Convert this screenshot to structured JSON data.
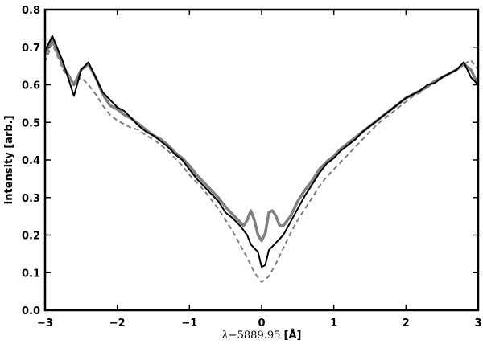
{
  "chart_data": {
    "type": "line",
    "xlabel_parts": [
      "λ",
      "−5889.95 ",
      "[Å]"
    ],
    "ylabel": "Intensity [arb.]",
    "xlim": [
      -3,
      3
    ],
    "ylim": [
      0,
      0.8
    ],
    "x_ticks": [
      -3,
      -2,
      -1,
      0,
      1,
      2,
      3
    ],
    "x_tick_labels": [
      "−3",
      "−2",
      "−1",
      "0",
      "1",
      "2",
      "3"
    ],
    "y_ticks": [
      0.0,
      0.1,
      0.2,
      0.3,
      0.4,
      0.5,
      0.6,
      0.7,
      0.8
    ],
    "y_tick_labels": [
      "0.0",
      "0.1",
      "0.2",
      "0.3",
      "0.4",
      "0.5",
      "0.6",
      "0.7",
      "0.8"
    ],
    "grid": false,
    "legend": "none",
    "series": [
      {
        "style": "dashed-gray",
        "color": "#7f7f7f",
        "x": [
          -3.0,
          -2.9,
          -2.75,
          -2.6,
          -2.5,
          -2.4,
          -2.3,
          -2.2,
          -2.1,
          -2.0,
          -1.9,
          -1.8,
          -1.7,
          -1.6,
          -1.5,
          -1.4,
          -1.3,
          -1.2,
          -1.1,
          -1.0,
          -0.9,
          -0.8,
          -0.7,
          -0.6,
          -0.5,
          -0.4,
          -0.3,
          -0.2,
          -0.1,
          0.0,
          0.1,
          0.2,
          0.3,
          0.4,
          0.5,
          0.6,
          0.7,
          0.8,
          0.9,
          1.0,
          1.1,
          1.2,
          1.3,
          1.4,
          1.5,
          1.6,
          1.7,
          1.8,
          1.9,
          2.0,
          2.1,
          2.2,
          2.3,
          2.4,
          2.5,
          2.6,
          2.7,
          2.8,
          2.9,
          3.0
        ],
        "y": [
          0.66,
          0.71,
          0.64,
          0.6,
          0.62,
          0.6,
          0.575,
          0.545,
          0.52,
          0.505,
          0.495,
          0.485,
          0.48,
          0.465,
          0.455,
          0.44,
          0.425,
          0.405,
          0.385,
          0.36,
          0.34,
          0.32,
          0.295,
          0.27,
          0.24,
          0.21,
          0.175,
          0.14,
          0.1,
          0.075,
          0.09,
          0.125,
          0.165,
          0.205,
          0.24,
          0.27,
          0.3,
          0.33,
          0.355,
          0.375,
          0.395,
          0.415,
          0.435,
          0.455,
          0.475,
          0.495,
          0.51,
          0.525,
          0.54,
          0.555,
          0.57,
          0.58,
          0.595,
          0.61,
          0.62,
          0.63,
          0.64,
          0.655,
          0.665,
          0.64
        ]
      },
      {
        "style": "thick-gray",
        "color": "#808080",
        "x": [
          -3.0,
          -2.9,
          -2.75,
          -2.6,
          -2.5,
          -2.4,
          -2.3,
          -2.2,
          -2.1,
          -2.0,
          -1.9,
          -1.8,
          -1.7,
          -1.6,
          -1.5,
          -1.4,
          -1.3,
          -1.2,
          -1.1,
          -1.0,
          -0.9,
          -0.8,
          -0.7,
          -0.6,
          -0.5,
          -0.4,
          -0.3,
          -0.25,
          -0.2,
          -0.15,
          -0.1,
          -0.05,
          0.0,
          0.05,
          0.1,
          0.15,
          0.2,
          0.25,
          0.3,
          0.4,
          0.5,
          0.6,
          0.7,
          0.8,
          0.9,
          1.0,
          1.1,
          1.2,
          1.3,
          1.4,
          1.5,
          1.6,
          1.7,
          1.8,
          1.9,
          2.0,
          2.1,
          2.2,
          2.3,
          2.4,
          2.5,
          2.6,
          2.7,
          2.8,
          2.9,
          3.0
        ],
        "y": [
          0.68,
          0.72,
          0.65,
          0.6,
          0.64,
          0.655,
          0.62,
          0.575,
          0.545,
          0.535,
          0.52,
          0.51,
          0.495,
          0.48,
          0.465,
          0.455,
          0.44,
          0.42,
          0.405,
          0.385,
          0.36,
          0.34,
          0.32,
          0.3,
          0.275,
          0.255,
          0.235,
          0.225,
          0.24,
          0.265,
          0.24,
          0.2,
          0.185,
          0.205,
          0.26,
          0.265,
          0.25,
          0.225,
          0.225,
          0.25,
          0.29,
          0.32,
          0.345,
          0.375,
          0.395,
          0.41,
          0.43,
          0.445,
          0.46,
          0.475,
          0.49,
          0.505,
          0.52,
          0.535,
          0.55,
          0.565,
          0.575,
          0.585,
          0.595,
          0.61,
          0.62,
          0.63,
          0.64,
          0.655,
          0.64,
          0.6
        ]
      },
      {
        "style": "solid-black",
        "color": "#000000",
        "x": [
          -3.0,
          -2.9,
          -2.75,
          -2.6,
          -2.5,
          -2.4,
          -2.3,
          -2.2,
          -2.1,
          -2.0,
          -1.9,
          -1.8,
          -1.7,
          -1.6,
          -1.5,
          -1.4,
          -1.3,
          -1.2,
          -1.1,
          -1.0,
          -0.9,
          -0.8,
          -0.7,
          -0.6,
          -0.5,
          -0.4,
          -0.3,
          -0.2,
          -0.15,
          -0.1,
          -0.05,
          0.0,
          0.05,
          0.1,
          0.2,
          0.3,
          0.4,
          0.5,
          0.6,
          0.7,
          0.8,
          0.9,
          1.0,
          1.1,
          1.2,
          1.3,
          1.4,
          1.5,
          1.6,
          1.7,
          1.8,
          1.9,
          2.0,
          2.1,
          2.2,
          2.3,
          2.4,
          2.5,
          2.6,
          2.7,
          2.8,
          2.9,
          3.0
        ],
        "y": [
          0.69,
          0.73,
          0.66,
          0.57,
          0.64,
          0.66,
          0.62,
          0.58,
          0.56,
          0.54,
          0.53,
          0.51,
          0.49,
          0.475,
          0.465,
          0.45,
          0.435,
          0.415,
          0.4,
          0.375,
          0.35,
          0.33,
          0.31,
          0.29,
          0.26,
          0.245,
          0.225,
          0.2,
          0.175,
          0.165,
          0.155,
          0.115,
          0.12,
          0.16,
          0.18,
          0.2,
          0.235,
          0.27,
          0.305,
          0.335,
          0.365,
          0.39,
          0.405,
          0.425,
          0.44,
          0.455,
          0.475,
          0.49,
          0.505,
          0.52,
          0.535,
          0.55,
          0.565,
          0.575,
          0.585,
          0.6,
          0.605,
          0.62,
          0.63,
          0.64,
          0.66,
          0.62,
          0.6
        ]
      }
    ]
  }
}
